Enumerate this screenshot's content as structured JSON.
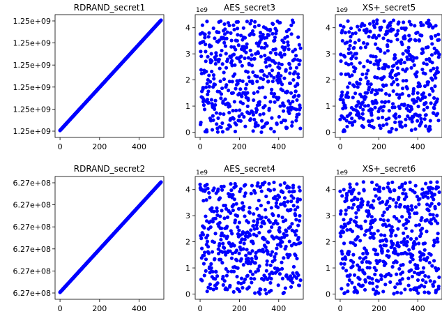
{
  "chart_data": [
    {
      "type": "scatter",
      "title": "RDRAND_secret1",
      "xlim": [
        -25,
        525
      ],
      "x_ticks": [
        0,
        200,
        400
      ],
      "x_tick_labels": [
        "0",
        "200",
        "400"
      ],
      "y_tick_labels": [
        "1.25e+09",
        "1.25e+09",
        "1.25e+09",
        "1.25e+09",
        "1.25e+09",
        "1.25e+09"
      ],
      "y_offset_text": "",
      "color": "#0000ff",
      "pattern": "linear",
      "n_points": 512,
      "series": [
        {
          "x_range": [
            0,
            511
          ],
          "y_trend": "increasing"
        }
      ]
    },
    {
      "type": "scatter",
      "title": "AES_secret3",
      "xlim": [
        -25,
        525
      ],
      "ylim": [
        -0.2,
        4.5
      ],
      "x_ticks": [
        0,
        200,
        400
      ],
      "x_tick_labels": [
        "0",
        "200",
        "400"
      ],
      "y_ticks": [
        0,
        1,
        2,
        3,
        4
      ],
      "y_tick_labels": [
        "0",
        "1",
        "2",
        "3",
        "4"
      ],
      "y_offset_text": "1e9",
      "color": "#0000ff",
      "pattern": "random",
      "n_points": 512,
      "seed": 3,
      "series": [
        {
          "x_range": [
            0,
            511
          ],
          "y_range": [
            0,
            4.29
          ]
        }
      ]
    },
    {
      "type": "scatter",
      "title": "XS+_secret5",
      "xlim": [
        -25,
        525
      ],
      "ylim": [
        -0.2,
        4.5
      ],
      "x_ticks": [
        0,
        200,
        400
      ],
      "x_tick_labels": [
        "0",
        "200",
        "400"
      ],
      "y_ticks": [
        0,
        1,
        2,
        3,
        4
      ],
      "y_tick_labels": [
        "0",
        "1",
        "2",
        "3",
        "4"
      ],
      "y_offset_text": "1e9",
      "color": "#0000ff",
      "pattern": "random",
      "n_points": 512,
      "seed": 5,
      "series": [
        {
          "x_range": [
            0,
            511
          ],
          "y_range": [
            0,
            4.29
          ]
        }
      ]
    },
    {
      "type": "scatter",
      "title": "RDRAND_secret2",
      "xlim": [
        -25,
        525
      ],
      "x_ticks": [
        0,
        200,
        400
      ],
      "x_tick_labels": [
        "0",
        "200",
        "400"
      ],
      "y_tick_labels": [
        "6.27e+08",
        "6.27e+08",
        "6.27e+08",
        "6.27e+08",
        "6.27e+08",
        "6.27e+08"
      ],
      "y_offset_text": "",
      "color": "#0000ff",
      "pattern": "linear",
      "n_points": 512,
      "series": [
        {
          "x_range": [
            0,
            511
          ],
          "y_trend": "increasing"
        }
      ]
    },
    {
      "type": "scatter",
      "title": "AES_secret4",
      "xlim": [
        -25,
        525
      ],
      "ylim": [
        -0.2,
        4.5
      ],
      "x_ticks": [
        0,
        200,
        400
      ],
      "x_tick_labels": [
        "0",
        "200",
        "400"
      ],
      "y_ticks": [
        0,
        1,
        2,
        3,
        4
      ],
      "y_tick_labels": [
        "0",
        "1",
        "2",
        "3",
        "4"
      ],
      "y_offset_text": "1e9",
      "color": "#0000ff",
      "pattern": "random",
      "n_points": 512,
      "seed": 4,
      "series": [
        {
          "x_range": [
            0,
            511
          ],
          "y_range": [
            0,
            4.29
          ]
        }
      ]
    },
    {
      "type": "scatter",
      "title": "XS+_secret6",
      "xlim": [
        -25,
        525
      ],
      "ylim": [
        -0.2,
        4.5
      ],
      "x_ticks": [
        0,
        200,
        400
      ],
      "x_tick_labels": [
        "0",
        "200",
        "400"
      ],
      "y_ticks": [
        0,
        1,
        2,
        3,
        4
      ],
      "y_tick_labels": [
        "0",
        "1",
        "2",
        "3",
        "4"
      ],
      "y_offset_text": "1e9",
      "color": "#0000ff",
      "pattern": "random",
      "n_points": 512,
      "seed": 6,
      "series": [
        {
          "x_range": [
            0,
            511
          ],
          "y_range": [
            0,
            4.29
          ]
        }
      ]
    }
  ]
}
